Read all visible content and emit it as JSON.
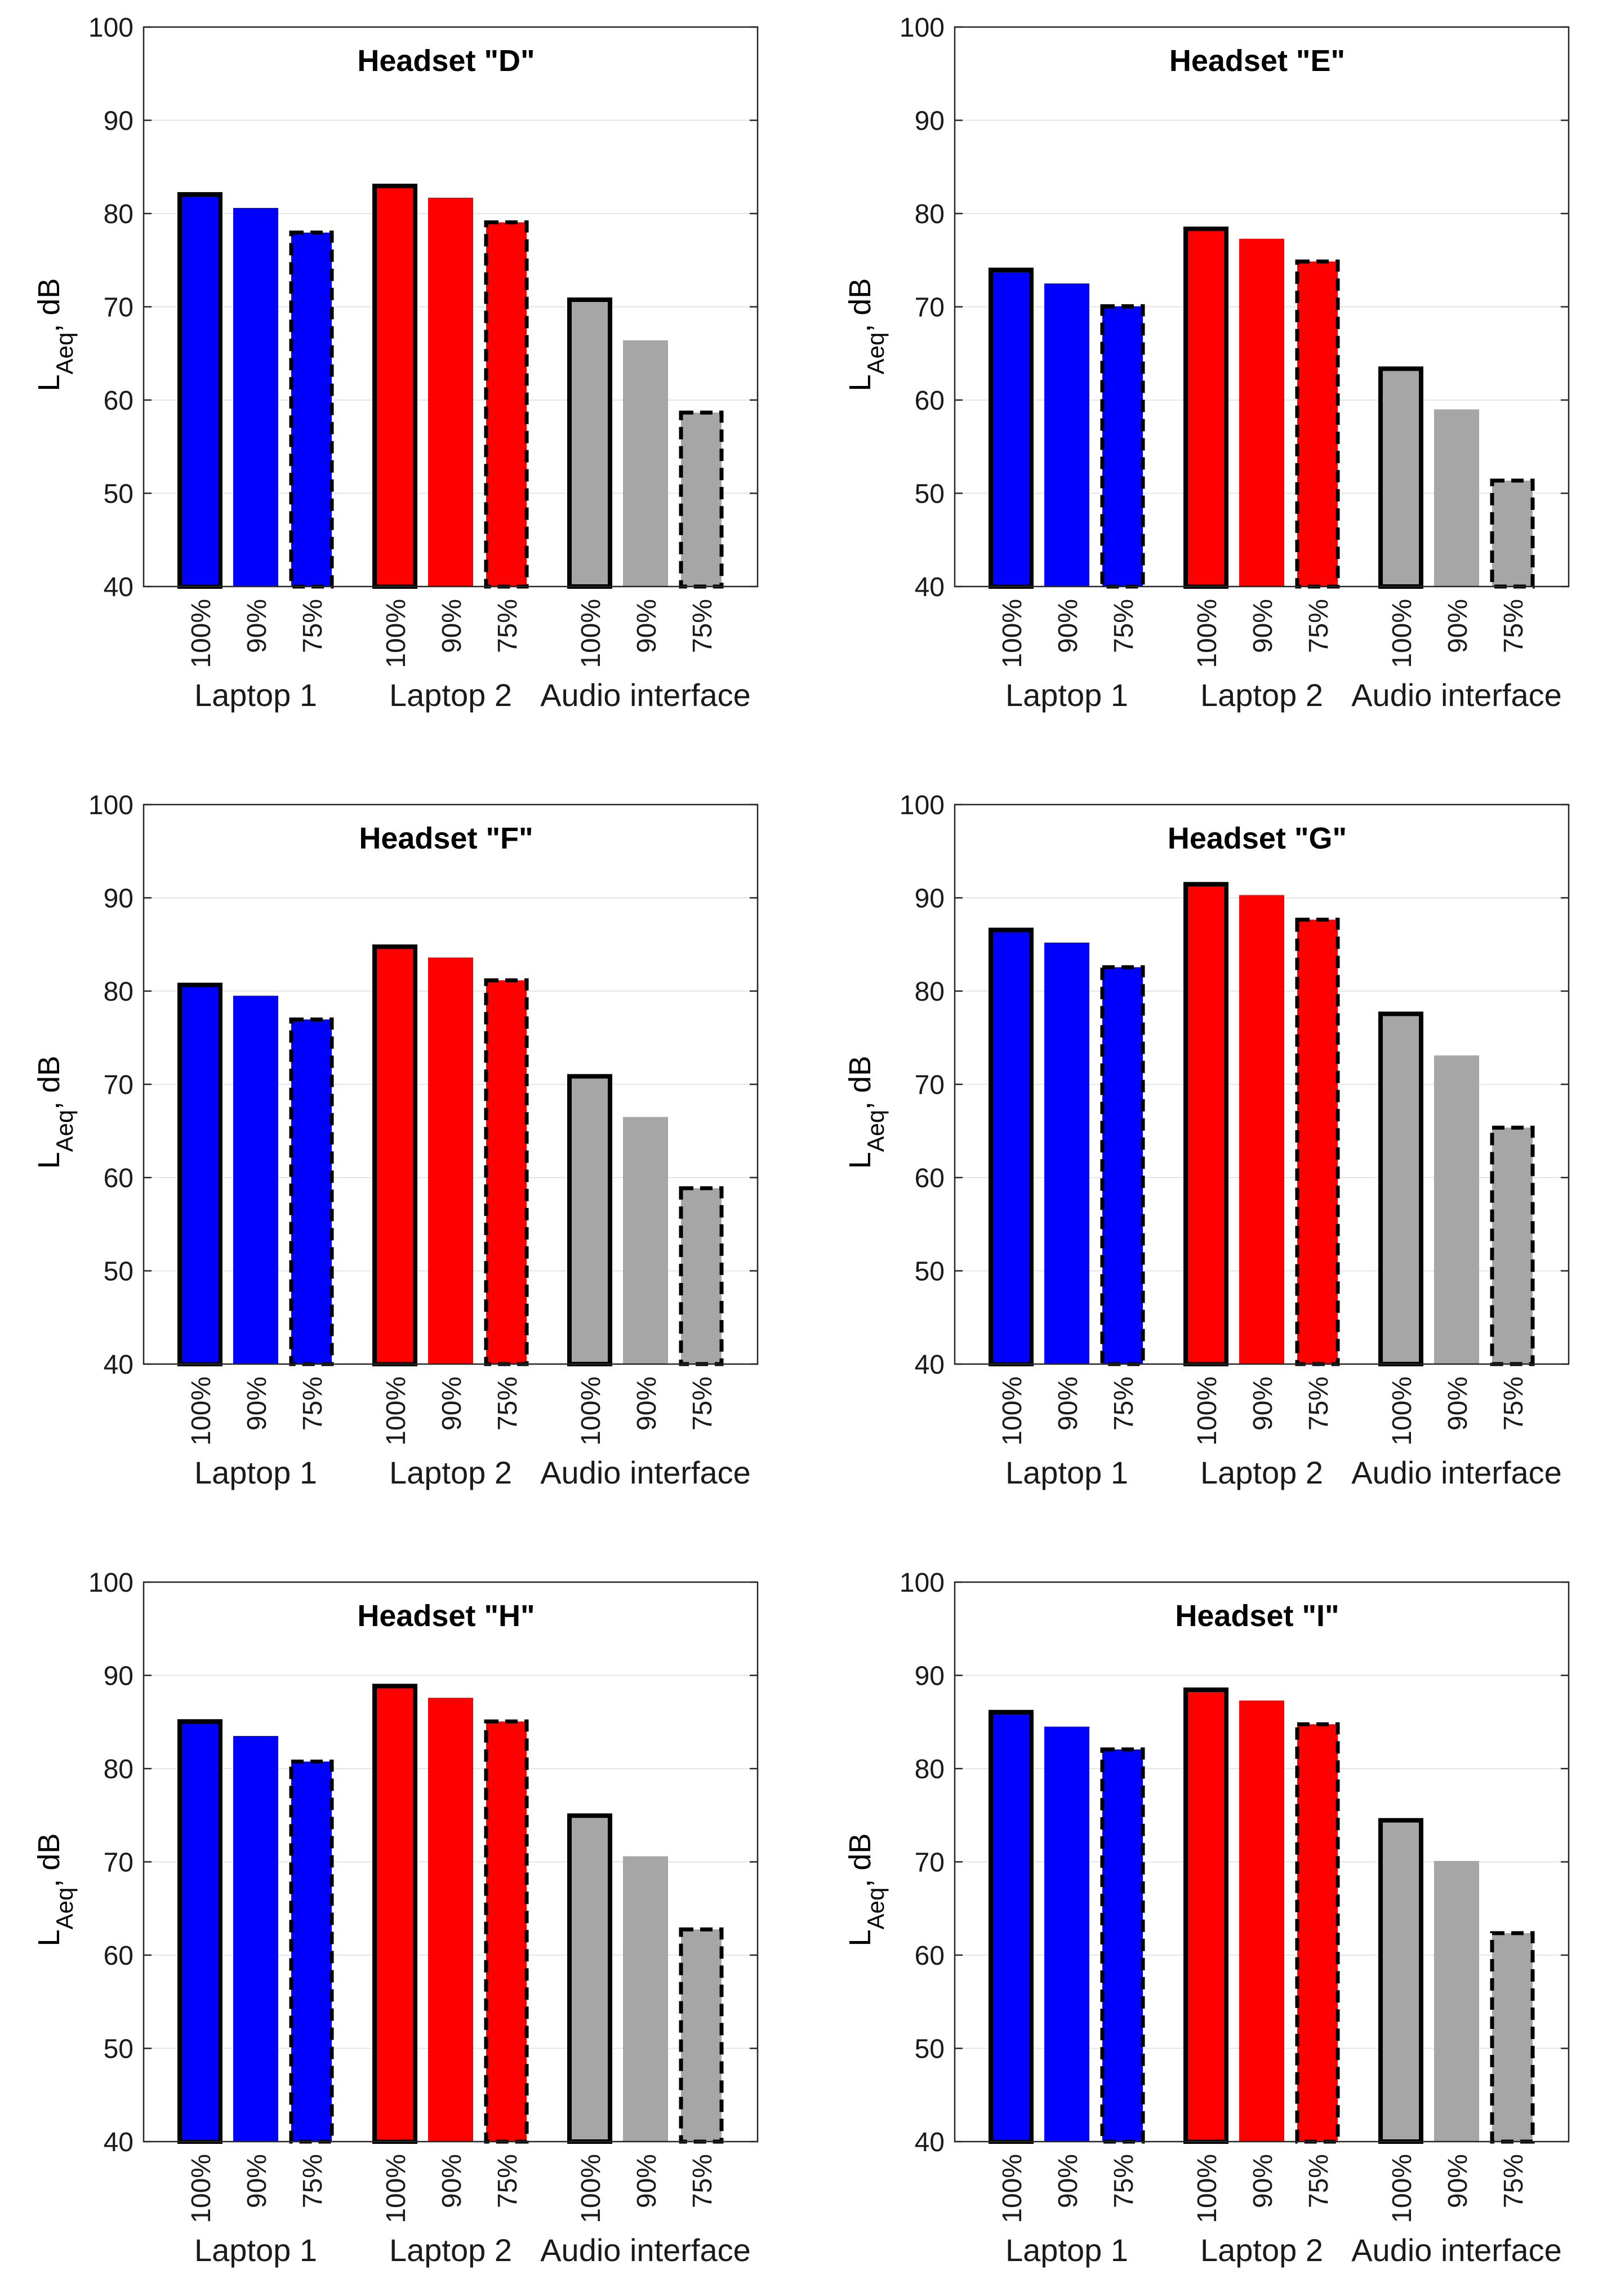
{
  "chart_data": [
    {
      "type": "bar",
      "title": "Headset \"D\"",
      "ylabel": {
        "main": "L",
        "sub": "Aeq",
        "unit": ", dB"
      },
      "ylim": [
        40,
        100
      ],
      "yticks": [
        "40",
        "50",
        "60",
        "70",
        "80",
        "90",
        "100"
      ],
      "grid": true,
      "groups": [
        {
          "name": "Laptop 1",
          "color": "#0000ff",
          "bars": [
            {
              "label": "100%",
              "value": 82.3,
              "edge": "solid"
            },
            {
              "label": "90%",
              "value": 80.6,
              "edge": "none"
            },
            {
              "label": "75%",
              "value": 78.2,
              "edge": "dashed"
            }
          ]
        },
        {
          "name": "Laptop 2",
          "color": "#ff0000",
          "bars": [
            {
              "label": "100%",
              "value": 83.2,
              "edge": "solid"
            },
            {
              "label": "90%",
              "value": 81.7,
              "edge": "none"
            },
            {
              "label": "75%",
              "value": 79.3,
              "edge": "dashed"
            }
          ]
        },
        {
          "name": "Audio interface",
          "color": "#a6a6a6",
          "bars": [
            {
              "label": "100%",
              "value": 71.0,
              "edge": "solid"
            },
            {
              "label": "90%",
              "value": 66.4,
              "edge": "none"
            },
            {
              "label": "75%",
              "value": 58.9,
              "edge": "dashed"
            }
          ]
        }
      ]
    },
    {
      "type": "bar",
      "title": "Headset \"E\"",
      "ylabel": {
        "main": "L",
        "sub": "Aeq",
        "unit": ", dB"
      },
      "ylim": [
        40,
        100
      ],
      "yticks": [
        "40",
        "50",
        "60",
        "70",
        "80",
        "90",
        "100"
      ],
      "grid": true,
      "groups": [
        {
          "name": "Laptop 1",
          "color": "#0000ff",
          "bars": [
            {
              "label": "100%",
              "value": 74.2,
              "edge": "solid"
            },
            {
              "label": "90%",
              "value": 72.5,
              "edge": "none"
            },
            {
              "label": "75%",
              "value": 70.3,
              "edge": "dashed"
            }
          ]
        },
        {
          "name": "Laptop 2",
          "color": "#ff0000",
          "bars": [
            {
              "label": "100%",
              "value": 78.6,
              "edge": "solid"
            },
            {
              "label": "90%",
              "value": 77.3,
              "edge": "none"
            },
            {
              "label": "75%",
              "value": 75.1,
              "edge": "dashed"
            }
          ]
        },
        {
          "name": "Audio interface",
          "color": "#a6a6a6",
          "bars": [
            {
              "label": "100%",
              "value": 63.6,
              "edge": "solid"
            },
            {
              "label": "90%",
              "value": 59.0,
              "edge": "none"
            },
            {
              "label": "75%",
              "value": 51.6,
              "edge": "dashed"
            }
          ]
        }
      ]
    },
    {
      "type": "bar",
      "title": "Headset \"F\"",
      "ylabel": {
        "main": "L",
        "sub": "Aeq",
        "unit": ", dB"
      },
      "ylim": [
        40,
        100
      ],
      "yticks": [
        "40",
        "50",
        "60",
        "70",
        "80",
        "90",
        "100"
      ],
      "grid": true,
      "groups": [
        {
          "name": "Laptop 1",
          "color": "#0000ff",
          "bars": [
            {
              "label": "100%",
              "value": 80.9,
              "edge": "solid"
            },
            {
              "label": "90%",
              "value": 79.5,
              "edge": "none"
            },
            {
              "label": "75%",
              "value": 77.2,
              "edge": "dashed"
            }
          ]
        },
        {
          "name": "Laptop 2",
          "color": "#ff0000",
          "bars": [
            {
              "label": "100%",
              "value": 85.0,
              "edge": "solid"
            },
            {
              "label": "90%",
              "value": 83.6,
              "edge": "none"
            },
            {
              "label": "75%",
              "value": 81.4,
              "edge": "dashed"
            }
          ]
        },
        {
          "name": "Audio interface",
          "color": "#a6a6a6",
          "bars": [
            {
              "label": "100%",
              "value": 71.1,
              "edge": "solid"
            },
            {
              "label": "90%",
              "value": 66.5,
              "edge": "none"
            },
            {
              "label": "75%",
              "value": 59.1,
              "edge": "dashed"
            }
          ]
        }
      ]
    },
    {
      "type": "bar",
      "title": "Headset \"G\"",
      "ylabel": {
        "main": "L",
        "sub": "Aeq",
        "unit": ", dB"
      },
      "ylim": [
        40,
        100
      ],
      "yticks": [
        "40",
        "50",
        "60",
        "70",
        "80",
        "90",
        "100"
      ],
      "grid": true,
      "groups": [
        {
          "name": "Laptop 1",
          "color": "#0000ff",
          "bars": [
            {
              "label": "100%",
              "value": 86.8,
              "edge": "solid"
            },
            {
              "label": "90%",
              "value": 85.2,
              "edge": "none"
            },
            {
              "label": "75%",
              "value": 82.8,
              "edge": "dashed"
            }
          ]
        },
        {
          "name": "Laptop 2",
          "color": "#ff0000",
          "bars": [
            {
              "label": "100%",
              "value": 91.7,
              "edge": "solid"
            },
            {
              "label": "90%",
              "value": 90.3,
              "edge": "none"
            },
            {
              "label": "75%",
              "value": 87.9,
              "edge": "dashed"
            }
          ]
        },
        {
          "name": "Audio interface",
          "color": "#a6a6a6",
          "bars": [
            {
              "label": "100%",
              "value": 77.8,
              "edge": "solid"
            },
            {
              "label": "90%",
              "value": 73.1,
              "edge": "none"
            },
            {
              "label": "75%",
              "value": 65.6,
              "edge": "dashed"
            }
          ]
        }
      ]
    },
    {
      "type": "bar",
      "title": "Headset \"H\"",
      "ylabel": {
        "main": "L",
        "sub": "Aeq",
        "unit": ", dB"
      },
      "ylim": [
        40,
        100
      ],
      "yticks": [
        "40",
        "50",
        "60",
        "70",
        "80",
        "90",
        "100"
      ],
      "grid": true,
      "groups": [
        {
          "name": "Laptop 1",
          "color": "#0000ff",
          "bars": [
            {
              "label": "100%",
              "value": 85.3,
              "edge": "solid"
            },
            {
              "label": "90%",
              "value": 83.5,
              "edge": "none"
            },
            {
              "label": "75%",
              "value": 81.0,
              "edge": "dashed"
            }
          ]
        },
        {
          "name": "Laptop 2",
          "color": "#ff0000",
          "bars": [
            {
              "label": "100%",
              "value": 89.1,
              "edge": "solid"
            },
            {
              "label": "90%",
              "value": 87.6,
              "edge": "none"
            },
            {
              "label": "75%",
              "value": 85.3,
              "edge": "dashed"
            }
          ]
        },
        {
          "name": "Audio interface",
          "color": "#a6a6a6",
          "bars": [
            {
              "label": "100%",
              "value": 75.2,
              "edge": "solid"
            },
            {
              "label": "90%",
              "value": 70.6,
              "edge": "none"
            },
            {
              "label": "75%",
              "value": 63.0,
              "edge": "dashed"
            }
          ]
        }
      ]
    },
    {
      "type": "bar",
      "title": "Headset \"I\"",
      "ylabel": {
        "main": "L",
        "sub": "Aeq",
        "unit": ", dB"
      },
      "ylim": [
        40,
        100
      ],
      "yticks": [
        "40",
        "50",
        "60",
        "70",
        "80",
        "90",
        "100"
      ],
      "grid": true,
      "groups": [
        {
          "name": "Laptop 1",
          "color": "#0000ff",
          "bars": [
            {
              "label": "100%",
              "value": 86.3,
              "edge": "solid"
            },
            {
              "label": "90%",
              "value": 84.5,
              "edge": "none"
            },
            {
              "label": "75%",
              "value": 82.3,
              "edge": "dashed"
            }
          ]
        },
        {
          "name": "Laptop 2",
          "color": "#ff0000",
          "bars": [
            {
              "label": "100%",
              "value": 88.7,
              "edge": "solid"
            },
            {
              "label": "90%",
              "value": 87.3,
              "edge": "none"
            },
            {
              "label": "75%",
              "value": 85.0,
              "edge": "dashed"
            }
          ]
        },
        {
          "name": "Audio interface",
          "color": "#a6a6a6",
          "bars": [
            {
              "label": "100%",
              "value": 74.7,
              "edge": "solid"
            },
            {
              "label": "90%",
              "value": 70.1,
              "edge": "none"
            },
            {
              "label": "75%",
              "value": 62.6,
              "edge": "dashed"
            }
          ]
        }
      ]
    }
  ]
}
